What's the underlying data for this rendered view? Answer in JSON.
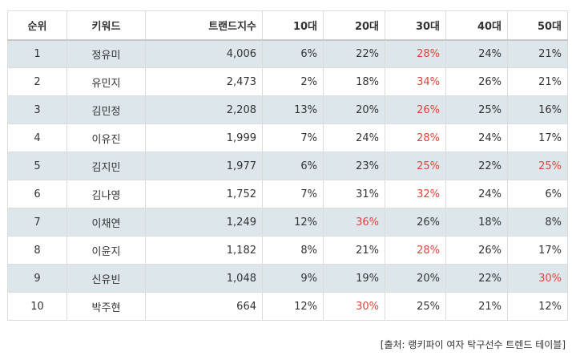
{
  "table": {
    "headers": [
      "순위",
      "키워드",
      "트랜드지수",
      "10대",
      "20대",
      "30대",
      "40대",
      "50대"
    ],
    "rows": [
      {
        "rank": "1",
        "keyword": "정유미",
        "index": "4,006",
        "a10": "6%",
        "a20": "22%",
        "a30": "28%",
        "a40": "24%",
        "a50": "21%",
        "highlight": [
          "a30"
        ]
      },
      {
        "rank": "2",
        "keyword": "유민지",
        "index": "2,473",
        "a10": "2%",
        "a20": "18%",
        "a30": "34%",
        "a40": "26%",
        "a50": "21%",
        "highlight": [
          "a30"
        ]
      },
      {
        "rank": "3",
        "keyword": "김민정",
        "index": "2,208",
        "a10": "13%",
        "a20": "20%",
        "a30": "26%",
        "a40": "25%",
        "a50": "16%",
        "highlight": [
          "a30"
        ]
      },
      {
        "rank": "4",
        "keyword": "이유진",
        "index": "1,999",
        "a10": "7%",
        "a20": "24%",
        "a30": "28%",
        "a40": "24%",
        "a50": "17%",
        "highlight": [
          "a30"
        ]
      },
      {
        "rank": "5",
        "keyword": "김지민",
        "index": "1,977",
        "a10": "6%",
        "a20": "23%",
        "a30": "25%",
        "a40": "22%",
        "a50": "25%",
        "highlight": [
          "a30",
          "a50"
        ]
      },
      {
        "rank": "6",
        "keyword": "김나영",
        "index": "1,752",
        "a10": "7%",
        "a20": "31%",
        "a30": "32%",
        "a40": "24%",
        "a50": "6%",
        "highlight": [
          "a30"
        ]
      },
      {
        "rank": "7",
        "keyword": "이채연",
        "index": "1,249",
        "a10": "12%",
        "a20": "36%",
        "a30": "26%",
        "a40": "18%",
        "a50": "8%",
        "highlight": [
          "a20"
        ]
      },
      {
        "rank": "8",
        "keyword": "이윤지",
        "index": "1,182",
        "a10": "8%",
        "a20": "21%",
        "a30": "28%",
        "a40": "26%",
        "a50": "17%",
        "highlight": [
          "a30"
        ]
      },
      {
        "rank": "9",
        "keyword": "신유빈",
        "index": "1,048",
        "a10": "9%",
        "a20": "19%",
        "a30": "20%",
        "a40": "22%",
        "a50": "30%",
        "highlight": [
          "a50"
        ]
      },
      {
        "rank": "10",
        "keyword": "박주현",
        "index": "664",
        "a10": "12%",
        "a20": "30%",
        "a30": "25%",
        "a40": "21%",
        "a50": "12%",
        "highlight": [
          "a20"
        ]
      }
    ]
  },
  "source": "[출처: 랭키파이 여자 탁구선수 트렌드 테이블]",
  "colors": {
    "highlight": "#e0453a",
    "stripe": "#dce6eb",
    "border": "#dcdcdc"
  }
}
